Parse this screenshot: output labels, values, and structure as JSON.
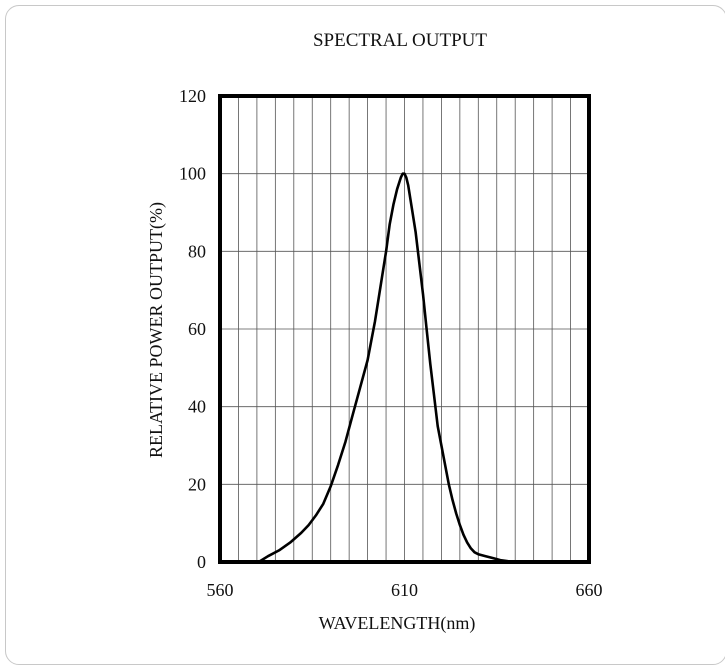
{
  "chart_data": {
    "type": "line",
    "title": "SPECTRAL OUTPUT",
    "xlabel": "WAVELENGTH(nm)",
    "ylabel": "RELATIVE POWER OUTPUT(%)",
    "xlim": [
      560,
      660
    ],
    "ylim": [
      0,
      120
    ],
    "x_ticks": [
      560,
      610,
      660
    ],
    "y_ticks": [
      0,
      20,
      40,
      60,
      80,
      100,
      120
    ],
    "x_grid_step": 5,
    "y_grid_step": 20,
    "grid": true,
    "series": [
      {
        "color": "#000000",
        "x": [
          570.5,
          573,
          576,
          579,
          582,
          584,
          586,
          588,
          590,
          592,
          594,
          596,
          598,
          600,
          601,
          602,
          603,
          604,
          605,
          606,
          607,
          608,
          609,
          609.5,
          610,
          610.5,
          611,
          612,
          613,
          614,
          615,
          616,
          617,
          618,
          619,
          620,
          621,
          622,
          623,
          624,
          625,
          626,
          627,
          628,
          629,
          630,
          632,
          634,
          636,
          638,
          640,
          642,
          645
        ],
        "y": [
          0,
          1.5,
          3,
          5,
          7.5,
          9.5,
          12,
          15,
          19.5,
          25,
          31,
          38,
          45,
          52,
          57,
          62,
          68,
          74,
          80,
          87,
          92,
          96,
          99,
          100,
          100,
          99,
          97,
          91,
          85,
          77,
          69,
          60,
          51,
          43,
          35,
          30,
          25,
          20,
          16,
          12.5,
          9.5,
          7,
          5,
          3.5,
          2.5,
          2,
          1.5,
          1,
          0.5,
          0.2,
          0,
          0,
          0
        ]
      }
    ]
  }
}
